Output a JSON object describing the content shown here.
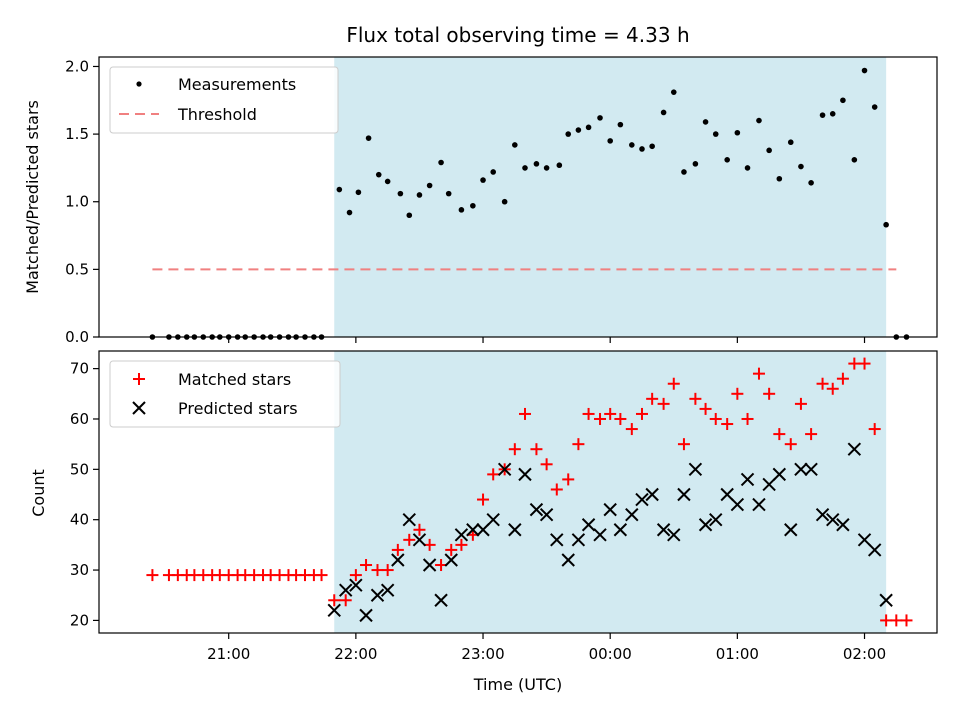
{
  "chart_data": [
    {
      "type": "scatter",
      "title": "Flux total observing time = 4.33 h",
      "ylabel": "Matched/Predicted stars",
      "xlabel": "",
      "ylim": [
        0,
        2.07
      ],
      "yticks": [
        "0.0",
        "0.5",
        "1.0",
        "1.5",
        "2.0"
      ],
      "ytick_values": [
        0,
        0.5,
        1.0,
        1.5,
        2.0
      ],
      "legend_position": "top-left",
      "shaded_interval_hours": [
        21.83,
        2.17
      ],
      "series": [
        {
          "name": "Measurements",
          "kind": "points",
          "color": "#000000",
          "x": [
            20.4,
            20.53,
            20.6,
            20.67,
            20.73,
            20.8,
            20.87,
            20.93,
            21.0,
            21.07,
            21.13,
            21.2,
            21.27,
            21.33,
            21.4,
            21.47,
            21.53,
            21.6,
            21.67,
            21.73,
            21.87,
            21.95,
            22.02,
            22.1,
            22.18,
            22.25,
            22.35,
            22.42,
            22.5,
            22.58,
            22.67,
            22.73,
            22.83,
            22.92,
            23.0,
            23.08,
            23.17,
            23.25,
            23.33,
            23.42,
            23.5,
            23.6,
            23.67,
            23.75,
            23.83,
            23.92,
            24.0,
            24.08,
            24.17,
            24.25,
            24.33,
            24.42,
            24.5,
            24.58,
            24.67,
            24.75,
            24.83,
            24.92,
            25.0,
            25.08,
            25.17,
            25.25,
            25.33,
            25.42,
            25.5,
            25.58,
            25.67,
            25.75,
            25.83,
            25.92,
            26.0,
            26.08,
            26.17,
            26.25,
            26.33
          ],
          "y": [
            0,
            0,
            0,
            0,
            0,
            0,
            0,
            0,
            0,
            0,
            0,
            0,
            0,
            0,
            0,
            0,
            0,
            0,
            0,
            0,
            1.09,
            0.92,
            1.07,
            1.47,
            1.2,
            1.15,
            1.06,
            0.9,
            1.05,
            1.12,
            1.29,
            1.06,
            0.94,
            0.97,
            1.16,
            1.22,
            1.0,
            1.42,
            1.25,
            1.28,
            1.25,
            1.27,
            1.5,
            1.53,
            1.55,
            1.62,
            1.45,
            1.57,
            1.42,
            1.39,
            1.41,
            1.66,
            1.81,
            1.22,
            1.28,
            1.59,
            1.5,
            1.31,
            1.51,
            1.25,
            1.6,
            1.38,
            1.17,
            1.44,
            1.26,
            1.14,
            1.64,
            1.65,
            1.75,
            1.31,
            1.97,
            1.7,
            0.83,
            0,
            0
          ]
        },
        {
          "name": "Threshold",
          "kind": "dashed-line",
          "color": "#f08080",
          "x": [
            20.4,
            26.25
          ],
          "y": [
            0.5,
            0.5
          ]
        }
      ]
    },
    {
      "type": "scatter",
      "title": "",
      "ylabel": "Count",
      "xlabel": "Time (UTC)",
      "ylim": [
        17.5,
        73.5
      ],
      "yticks": [
        "20",
        "30",
        "40",
        "50",
        "60",
        "70"
      ],
      "ytick_values": [
        20,
        30,
        40,
        50,
        60,
        70
      ],
      "xticks": [
        "21:00",
        "22:00",
        "23:00",
        "00:00",
        "01:00",
        "02:00"
      ],
      "xtick_values": [
        21,
        22,
        23,
        24,
        25,
        26
      ],
      "xlim": [
        19.98,
        26.57
      ],
      "legend_position": "top-left",
      "shaded_interval_hours": [
        21.83,
        2.17
      ],
      "series": [
        {
          "name": "Matched stars",
          "marker": "plus",
          "color": "#ff0000",
          "x": [
            20.4,
            20.53,
            20.6,
            20.67,
            20.73,
            20.8,
            20.87,
            20.93,
            21.0,
            21.07,
            21.13,
            21.2,
            21.27,
            21.33,
            21.4,
            21.47,
            21.53,
            21.6,
            21.67,
            21.73,
            21.83,
            21.92,
            22.0,
            22.08,
            22.17,
            22.25,
            22.33,
            22.42,
            22.5,
            22.58,
            22.67,
            22.75,
            22.83,
            22.92,
            23.0,
            23.08,
            23.17,
            23.25,
            23.33,
            23.42,
            23.5,
            23.58,
            23.67,
            23.75,
            23.83,
            23.92,
            24.0,
            24.08,
            24.17,
            24.25,
            24.33,
            24.42,
            24.5,
            24.58,
            24.67,
            24.75,
            24.83,
            24.92,
            25.0,
            25.08,
            25.17,
            25.25,
            25.33,
            25.42,
            25.5,
            25.58,
            25.67,
            25.75,
            25.83,
            25.92,
            26.0,
            26.08,
            26.17,
            26.25,
            26.33
          ],
          "y": [
            29,
            29,
            29,
            29,
            29,
            29,
            29,
            29,
            29,
            29,
            29,
            29,
            29,
            29,
            29,
            29,
            29,
            29,
            29,
            29,
            24,
            24,
            29,
            31,
            30,
            30,
            34,
            36,
            38,
            35,
            31,
            34,
            35,
            37,
            44,
            49,
            50,
            54,
            61,
            54,
            51,
            46,
            48,
            55,
            61,
            60,
            61,
            60,
            58,
            61,
            64,
            63,
            67,
            55,
            64,
            62,
            60,
            59,
            65,
            60,
            69,
            65,
            57,
            55,
            63,
            57,
            67,
            66,
            68,
            71,
            71,
            58,
            20,
            20,
            20
          ]
        },
        {
          "name": "Predicted stars",
          "marker": "x",
          "color": "#000000",
          "x": [
            21.83,
            21.92,
            22.0,
            22.08,
            22.17,
            22.25,
            22.33,
            22.42,
            22.5,
            22.58,
            22.67,
            22.75,
            22.83,
            22.92,
            23.0,
            23.08,
            23.17,
            23.25,
            23.33,
            23.42,
            23.5,
            23.58,
            23.67,
            23.75,
            23.83,
            23.92,
            24.0,
            24.08,
            24.17,
            24.25,
            24.33,
            24.42,
            24.5,
            24.58,
            24.67,
            24.75,
            24.83,
            24.92,
            25.0,
            25.08,
            25.17,
            25.25,
            25.33,
            25.42,
            25.5,
            25.58,
            25.67,
            25.75,
            25.83,
            25.92,
            26.0,
            26.08,
            26.17
          ],
          "y": [
            22,
            26,
            27,
            21,
            25,
            26,
            32,
            40,
            36,
            31,
            24,
            32,
            37,
            38,
            38,
            40,
            50,
            38,
            49,
            42,
            41,
            36,
            32,
            36,
            39,
            37,
            42,
            38,
            41,
            44,
            45,
            38,
            37,
            45,
            50,
            39,
            40,
            45,
            43,
            48,
            43,
            47,
            49,
            38,
            50,
            50,
            41,
            40,
            39,
            54,
            36,
            34,
            24
          ]
        }
      ]
    }
  ]
}
